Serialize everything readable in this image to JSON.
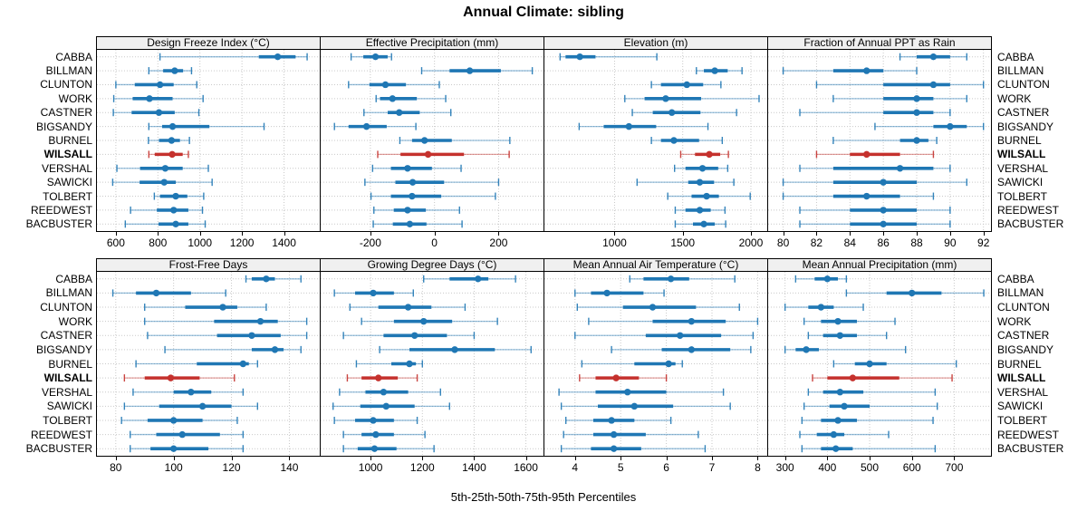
{
  "title": "Annual Climate: sibling",
  "caption": "5th-25th-50th-75th-95th Percentiles",
  "colors": {
    "series": "#1f77b4",
    "highlight": "#c5312d",
    "header_bg": "#f0f0f0",
    "grid": "#c9c9c9",
    "border": "#000000"
  },
  "chart_data": {
    "type": "dotplot-percentiles",
    "percentiles": [
      5,
      25,
      50,
      75,
      95
    ],
    "legend_note": "5th-25th-50th-75th-95th Percentiles",
    "stations": [
      "CABBA",
      "BILLMAN",
      "CLUNTON",
      "WORK",
      "CASTNER",
      "BIGSANDY",
      "BURNEL",
      "WILSALL",
      "VERSHAL",
      "SAWICKI",
      "TOLBERT",
      "REEDWEST",
      "BACBUSTER"
    ],
    "highlight": "WILSALL",
    "panels": [
      {
        "title": "Design Freeze Index (°C)",
        "row": 0,
        "col": 0,
        "xlim": [
          510,
          1570
        ],
        "ticks": [
          600,
          800,
          1000,
          1200,
          1400
        ],
        "values": [
          [
            810,
            1280,
            1370,
            1455,
            1510
          ],
          [
            757,
            825,
            880,
            920,
            960
          ],
          [
            600,
            690,
            810,
            875,
            985
          ],
          [
            590,
            680,
            760,
            870,
            1015
          ],
          [
            588,
            675,
            805,
            880,
            995
          ],
          [
            757,
            820,
            870,
            1045,
            1305
          ],
          [
            755,
            805,
            865,
            905,
            950
          ],
          [
            757,
            785,
            868,
            918,
            945
          ],
          [
            605,
            715,
            835,
            918,
            1040
          ],
          [
            585,
            713,
            830,
            885,
            1058
          ],
          [
            783,
            810,
            885,
            940,
            1018
          ],
          [
            670,
            795,
            875,
            945,
            1012
          ],
          [
            645,
            803,
            885,
            945,
            1025
          ]
        ]
      },
      {
        "title": "Effective Precipitation (mm)",
        "row": 0,
        "col": 1,
        "xlim": [
          -355,
          340
        ],
        "ticks": [
          -200,
          0,
          200
        ],
        "values": [
          [
            -260,
            -222,
            -184,
            -146,
            -134
          ],
          [
            -40,
            47,
            110,
            207,
            305
          ],
          [
            -268,
            -203,
            -153,
            -89,
            15
          ],
          [
            -182,
            -170,
            -131,
            -55,
            35
          ],
          [
            -220,
            -146,
            -110,
            -46,
            51
          ],
          [
            -312,
            -268,
            -212,
            -149,
            -58
          ],
          [
            -108,
            -70,
            -31,
            54,
            235
          ],
          [
            -177,
            -106,
            -20,
            92,
            233
          ],
          [
            -193,
            -136,
            -84,
            -8,
            83
          ],
          [
            -217,
            -122,
            -68,
            30,
            200
          ],
          [
            -198,
            -136,
            -70,
            21,
            190
          ],
          [
            -189,
            -127,
            -84,
            -27,
            78
          ],
          [
            -191,
            -130,
            -77,
            -25,
            86
          ]
        ]
      },
      {
        "title": "Elevation (m)",
        "row": 0,
        "col": 2,
        "xlim": [
          485,
          2120
        ],
        "ticks": [
          1000,
          1500,
          2000
        ],
        "values": [
          [
            600,
            640,
            745,
            860,
            1310
          ],
          [
            1600,
            1655,
            1735,
            1830,
            1935
          ],
          [
            1270,
            1340,
            1530,
            1650,
            1780
          ],
          [
            1075,
            1220,
            1375,
            1635,
            2060
          ],
          [
            1130,
            1280,
            1420,
            1630,
            1895
          ],
          [
            740,
            920,
            1105,
            1305,
            1685
          ],
          [
            1270,
            1340,
            1435,
            1620,
            1790
          ],
          [
            1485,
            1590,
            1695,
            1775,
            1835
          ],
          [
            1440,
            1520,
            1645,
            1760,
            1830
          ],
          [
            1165,
            1540,
            1625,
            1730,
            1875
          ],
          [
            1390,
            1565,
            1675,
            1765,
            1995
          ],
          [
            1445,
            1520,
            1625,
            1705,
            1810
          ],
          [
            1445,
            1575,
            1655,
            1735,
            1815
          ]
        ]
      },
      {
        "title": "Fraction of Annual PPT as Rain",
        "row": 0,
        "col": 3,
        "xlim": [
          79.1,
          92.45
        ],
        "ticks": [
          80,
          82,
          84,
          86,
          88,
          90,
          92
        ],
        "values": [
          [
            87,
            88,
            89,
            90,
            91
          ],
          [
            80,
            83,
            85,
            86,
            88
          ],
          [
            82,
            86,
            89,
            90,
            92
          ],
          [
            83,
            86,
            88,
            89,
            91
          ],
          [
            81,
            86,
            88,
            89,
            90
          ],
          [
            85.5,
            89,
            90,
            91,
            92
          ],
          [
            83,
            87,
            88,
            88.7,
            89.2
          ],
          [
            82,
            84,
            85,
            87,
            89
          ],
          [
            81,
            83,
            87,
            89,
            90
          ],
          [
            80,
            83,
            86,
            88,
            91
          ],
          [
            80,
            83,
            85,
            87,
            89
          ],
          [
            81,
            84,
            86,
            88,
            90
          ],
          [
            81,
            84,
            86,
            88,
            90
          ]
        ]
      },
      {
        "title": "Frost-Free Days",
        "row": 1,
        "col": 0,
        "xlim": [
          73.5,
          150.5
        ],
        "ticks": [
          80,
          100,
          120,
          140
        ],
        "values": [
          [
            125,
            127,
            132,
            135,
            144
          ],
          [
            79,
            87,
            94,
            106,
            118
          ],
          [
            90,
            104,
            117,
            122,
            132
          ],
          [
            90,
            114,
            130,
            136,
            146
          ],
          [
            91,
            115,
            127,
            137,
            146
          ],
          [
            97,
            127,
            135,
            138,
            144
          ],
          [
            87,
            108,
            124,
            126,
            129
          ],
          [
            83,
            90,
            99,
            109,
            121
          ],
          [
            86,
            100,
            106,
            113,
            124
          ],
          [
            83,
            95,
            110,
            120,
            129
          ],
          [
            82,
            91,
            100,
            110,
            122
          ],
          [
            85,
            94,
            103,
            116,
            124
          ],
          [
            85,
            92,
            100,
            112,
            124
          ]
        ]
      },
      {
        "title": "Growing Degree Days (°C)",
        "row": 1,
        "col": 1,
        "xlim": [
          807,
          1668
        ],
        "ticks": [
          1000,
          1200,
          1400,
          1600
        ],
        "values": [
          [
            1205,
            1305,
            1415,
            1455,
            1560
          ],
          [
            860,
            940,
            1010,
            1090,
            1165
          ],
          [
            920,
            1030,
            1145,
            1235,
            1365
          ],
          [
            965,
            1090,
            1205,
            1315,
            1490
          ],
          [
            895,
            1050,
            1170,
            1295,
            1400
          ],
          [
            1035,
            1150,
            1325,
            1480,
            1620
          ],
          [
            945,
            1080,
            1150,
            1175,
            1200
          ],
          [
            910,
            965,
            1030,
            1105,
            1180
          ],
          [
            880,
            980,
            1050,
            1145,
            1270
          ],
          [
            855,
            960,
            1060,
            1170,
            1305
          ],
          [
            860,
            940,
            1010,
            1090,
            1180
          ],
          [
            895,
            965,
            1020,
            1090,
            1210
          ],
          [
            895,
            950,
            1015,
            1100,
            1245
          ]
        ]
      },
      {
        "title": "Mean Annual Air Temperature (°C)",
        "row": 1,
        "col": 2,
        "xlim": [
          3.33,
          8.21
        ],
        "ticks": [
          4,
          5,
          6,
          7,
          8
        ],
        "values": [
          [
            5.2,
            5.5,
            6.1,
            6.5,
            7.5
          ],
          [
            4.0,
            4.35,
            4.7,
            5.5,
            5.95
          ],
          [
            4.05,
            5.05,
            5.7,
            6.65,
            7.6
          ],
          [
            4.3,
            5.7,
            6.55,
            7.3,
            8.0
          ],
          [
            4.0,
            5.55,
            6.3,
            7.2,
            7.9
          ],
          [
            4.8,
            5.9,
            6.55,
            7.4,
            7.85
          ],
          [
            4.15,
            5.3,
            6.05,
            6.2,
            6.35
          ],
          [
            4.1,
            4.45,
            4.9,
            5.4,
            6.0
          ],
          [
            3.65,
            4.45,
            5.15,
            6.0,
            7.25
          ],
          [
            3.7,
            4.5,
            5.3,
            6.15,
            7.4
          ],
          [
            3.8,
            4.4,
            4.8,
            5.3,
            6.1
          ],
          [
            3.75,
            4.4,
            4.85,
            5.55,
            6.7
          ],
          [
            3.7,
            4.35,
            4.85,
            5.45,
            6.85
          ]
        ]
      },
      {
        "title": "Mean Annual Precipitation (mm)",
        "row": 1,
        "col": 3,
        "xlim": [
          260,
          787
        ],
        "ticks": [
          300,
          400,
          500,
          600,
          700
        ],
        "values": [
          [
            325,
            370,
            400,
            425,
            445
          ],
          [
            445,
            540,
            600,
            670,
            770
          ],
          [
            300,
            355,
            385,
            415,
            485
          ],
          [
            345,
            385,
            425,
            470,
            560
          ],
          [
            355,
            390,
            430,
            470,
            540
          ],
          [
            300,
            325,
            350,
            380,
            585
          ],
          [
            415,
            465,
            500,
            540,
            705
          ],
          [
            365,
            400,
            460,
            570,
            695
          ],
          [
            355,
            390,
            430,
            485,
            655
          ],
          [
            345,
            405,
            440,
            500,
            660
          ],
          [
            340,
            385,
            425,
            470,
            650
          ],
          [
            335,
            375,
            415,
            440,
            545
          ],
          [
            340,
            385,
            420,
            460,
            655
          ]
        ]
      }
    ]
  }
}
